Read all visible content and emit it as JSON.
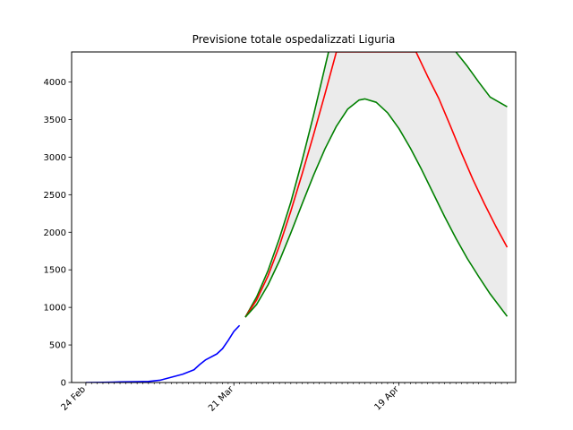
{
  "chart_data": {
    "type": "line",
    "title": "Previsione totale ospedalizzati Liguria",
    "xlabel": "",
    "ylabel": "",
    "x_start": "2020-02-24",
    "x_end": "2020-05-08",
    "ylim": [
      0,
      4400
    ],
    "yticks": [
      0,
      500,
      1000,
      1500,
      2000,
      2500,
      3000,
      3500,
      4000
    ],
    "xticks": [
      {
        "date": "2020-02-24",
        "label": "24 Feb"
      },
      {
        "date": "2020-03-21",
        "label": "21 Mar"
      },
      {
        "date": "2020-04-19",
        "label": "19 Apr"
      }
    ],
    "minor_ticks": "daily",
    "grid": false,
    "legend": "none",
    "series": [
      {
        "role": "observed",
        "color": "#0000ff",
        "points": [
          [
            "2020-02-24",
            0
          ],
          [
            "2020-02-27",
            2
          ],
          [
            "2020-03-01",
            8
          ],
          [
            "2020-03-04",
            12
          ],
          [
            "2020-03-06",
            14
          ],
          [
            "2020-03-08",
            30
          ],
          [
            "2020-03-10",
            70
          ],
          [
            "2020-03-12",
            110
          ],
          [
            "2020-03-14",
            170
          ],
          [
            "2020-03-15",
            240
          ],
          [
            "2020-03-16",
            300
          ],
          [
            "2020-03-18",
            380
          ],
          [
            "2020-03-19",
            450
          ],
          [
            "2020-03-20",
            560
          ],
          [
            "2020-03-21",
            680
          ],
          [
            "2020-03-22",
            760
          ]
        ]
      },
      {
        "role": "forecast-upper",
        "color": "#008000",
        "points": [
          [
            "2020-03-23",
            870
          ],
          [
            "2020-03-25",
            1140
          ],
          [
            "2020-03-27",
            1490
          ],
          [
            "2020-03-29",
            1920
          ],
          [
            "2020-03-31",
            2400
          ],
          [
            "2020-04-02",
            2960
          ],
          [
            "2020-04-04",
            3560
          ],
          [
            "2020-04-06",
            4200
          ],
          [
            "2020-04-07",
            4520
          ],
          [
            "2020-04-27",
            4500
          ],
          [
            "2020-04-29",
            4400
          ],
          [
            "2020-05-01",
            4210
          ],
          [
            "2020-05-03",
            4000
          ],
          [
            "2020-05-05",
            3800
          ],
          [
            "2020-05-08",
            3670
          ]
        ]
      },
      {
        "role": "forecast-central",
        "color": "#ff0000",
        "points": [
          [
            "2020-03-23",
            870
          ],
          [
            "2020-03-25",
            1100
          ],
          [
            "2020-03-27",
            1420
          ],
          [
            "2020-03-29",
            1820
          ],
          [
            "2020-03-31",
            2280
          ],
          [
            "2020-04-02",
            2780
          ],
          [
            "2020-04-04",
            3300
          ],
          [
            "2020-04-06",
            3840
          ],
          [
            "2020-04-08",
            4400
          ],
          [
            "2020-04-22",
            4400
          ],
          [
            "2020-04-24",
            4080
          ],
          [
            "2020-04-26",
            3780
          ],
          [
            "2020-04-28",
            3420
          ],
          [
            "2020-04-30",
            3050
          ],
          [
            "2020-05-02",
            2700
          ],
          [
            "2020-05-04",
            2380
          ],
          [
            "2020-05-06",
            2080
          ],
          [
            "2020-05-08",
            1800
          ]
        ]
      },
      {
        "role": "forecast-lower",
        "color": "#008000",
        "points": [
          [
            "2020-03-23",
            870
          ],
          [
            "2020-03-25",
            1040
          ],
          [
            "2020-03-27",
            1300
          ],
          [
            "2020-03-29",
            1620
          ],
          [
            "2020-03-31",
            1990
          ],
          [
            "2020-04-02",
            2380
          ],
          [
            "2020-04-04",
            2760
          ],
          [
            "2020-04-06",
            3110
          ],
          [
            "2020-04-08",
            3410
          ],
          [
            "2020-04-10",
            3640
          ],
          [
            "2020-04-12",
            3760
          ],
          [
            "2020-04-13",
            3775
          ],
          [
            "2020-04-15",
            3730
          ],
          [
            "2020-04-17",
            3590
          ],
          [
            "2020-04-19",
            3380
          ],
          [
            "2020-04-21",
            3120
          ],
          [
            "2020-04-23",
            2830
          ],
          [
            "2020-04-25",
            2520
          ],
          [
            "2020-04-27",
            2210
          ],
          [
            "2020-04-29",
            1920
          ],
          [
            "2020-05-01",
            1650
          ],
          [
            "2020-05-03",
            1410
          ],
          [
            "2020-05-05",
            1180
          ],
          [
            "2020-05-08",
            880
          ]
        ]
      }
    ],
    "band": {
      "between": [
        "forecast-lower",
        "forecast-upper"
      ],
      "color": "#ebebeb"
    }
  }
}
